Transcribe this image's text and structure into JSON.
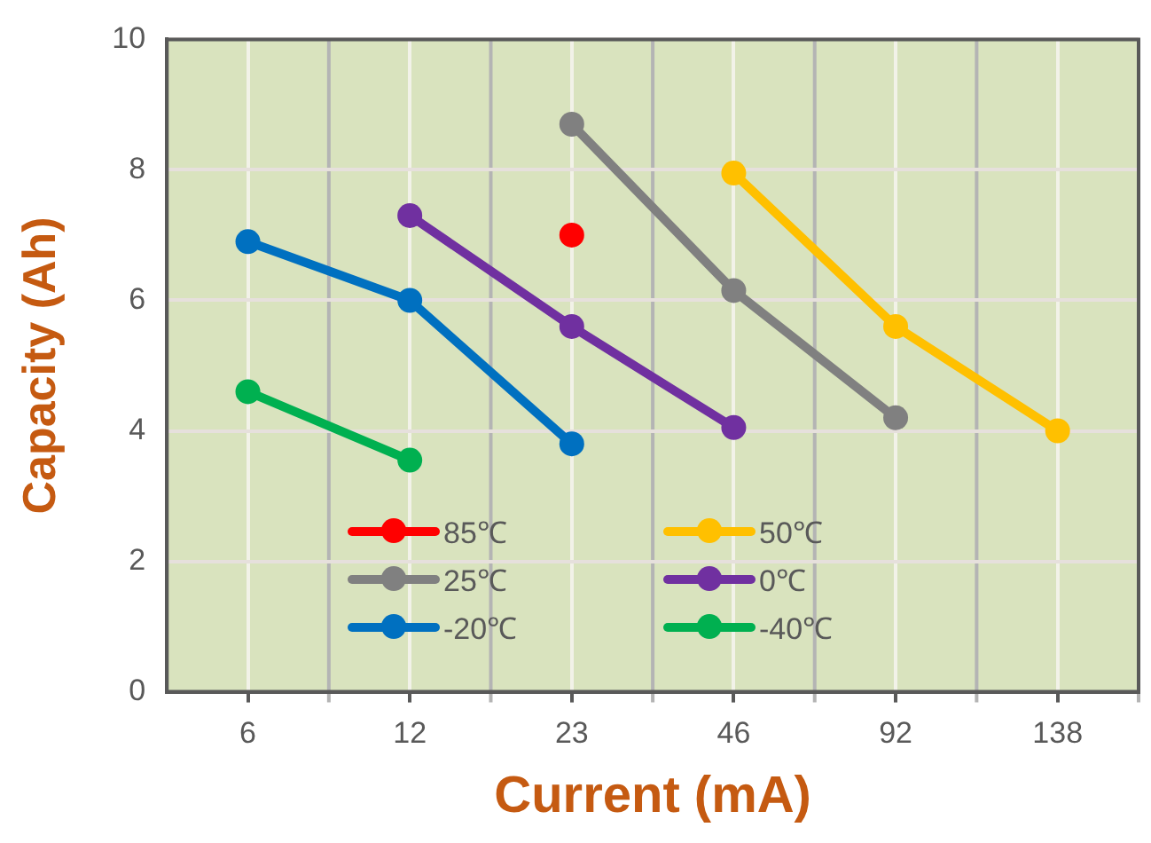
{
  "chart_data": {
    "type": "line",
    "xlabel": "Current (mA)",
    "ylabel": "Capacity (Ah)",
    "categories": [
      "6",
      "12",
      "23",
      "46",
      "92",
      "138"
    ],
    "series": [
      {
        "name": "85℃",
        "color": "#ff0000",
        "values": [
          null,
          null,
          7.0,
          null,
          null,
          null
        ]
      },
      {
        "name": "50℃",
        "color": "#ffc000",
        "values": [
          null,
          null,
          null,
          7.95,
          5.6,
          4.0
        ]
      },
      {
        "name": "25℃",
        "color": "#808080",
        "values": [
          null,
          null,
          8.7,
          6.15,
          4.2,
          null
        ]
      },
      {
        "name": "0℃",
        "color": "#7030a0",
        "values": [
          null,
          7.3,
          5.6,
          4.05,
          null,
          null
        ]
      },
      {
        "name": "-20℃",
        "color": "#0070c0",
        "values": [
          6.9,
          6.0,
          3.8,
          null,
          null,
          null
        ]
      },
      {
        "name": "-40℃",
        "color": "#00b050",
        "values": [
          4.6,
          3.55,
          null,
          null,
          null,
          null
        ]
      }
    ],
    "ylim": [
      0,
      10
    ],
    "yticks": [
      0,
      2,
      4,
      6,
      8,
      10
    ],
    "grid": true,
    "legend": "bottom left",
    "marker": "circle",
    "line_style": "solid"
  }
}
